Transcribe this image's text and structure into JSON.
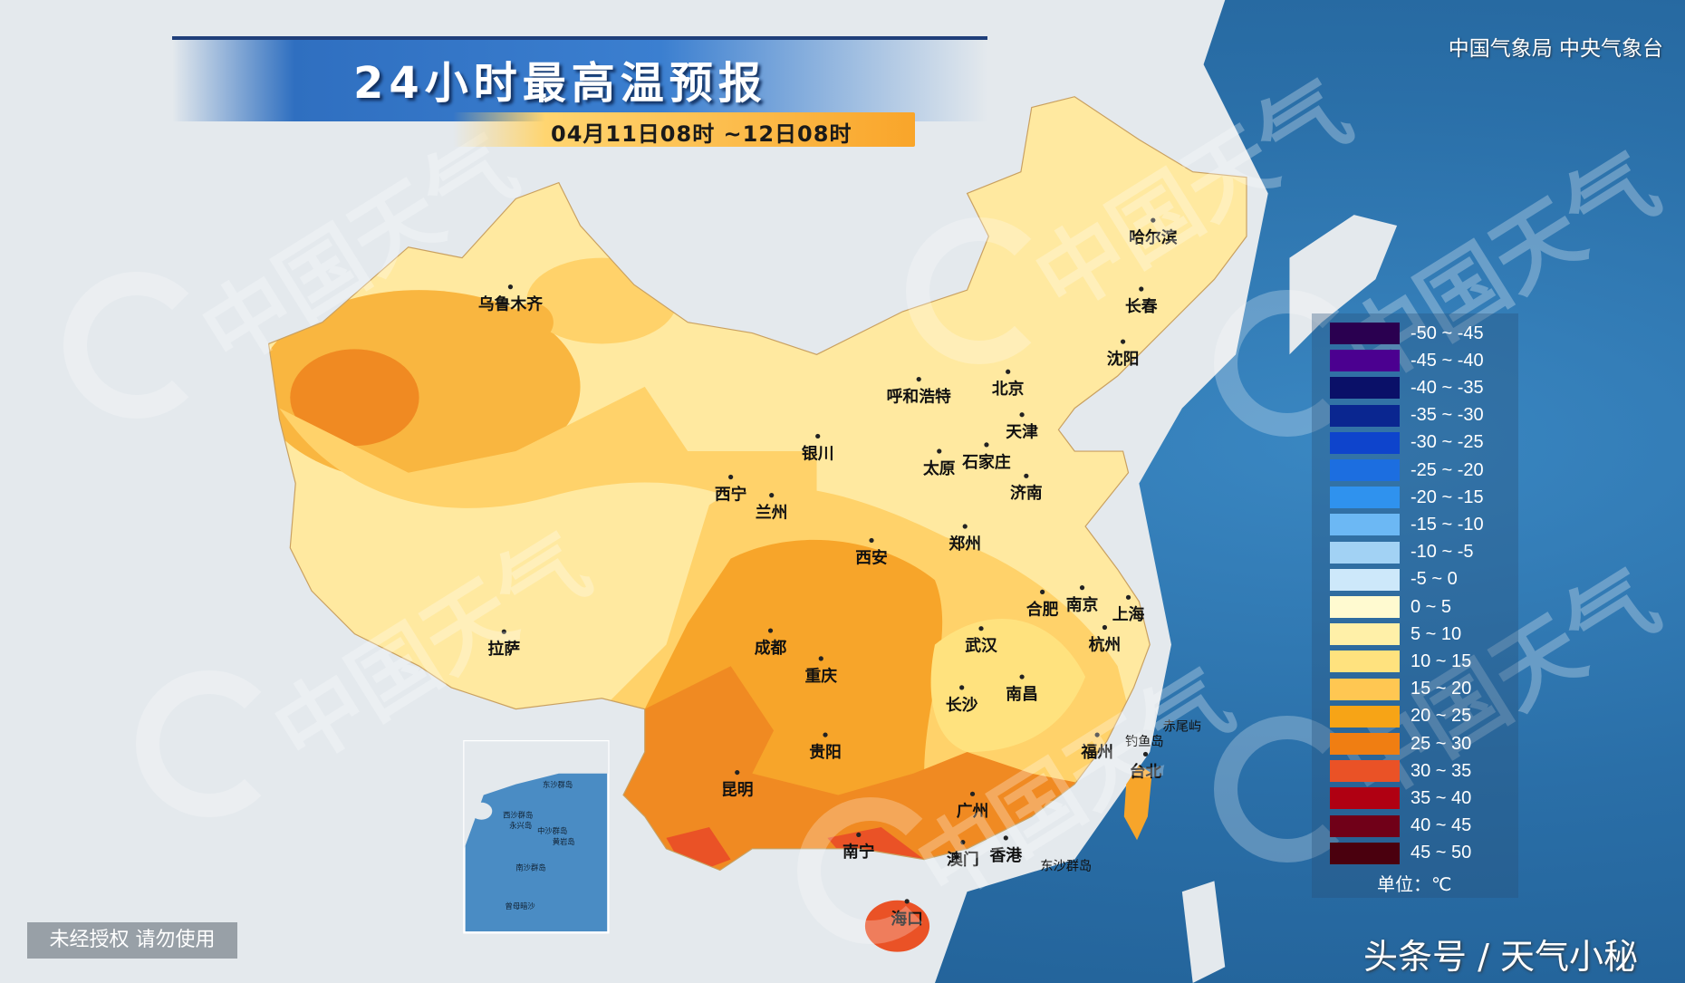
{
  "header": {
    "title": "24小时最高温预报",
    "date_range": "04月11日08时 ~12日08时",
    "organization": "中国气象局 中央气象台"
  },
  "legend": {
    "unit": "单位：℃",
    "items": [
      {
        "label": "-50 ~ -45",
        "color": "#2a0050"
      },
      {
        "label": "-45 ~ -40",
        "color": "#4b0090"
      },
      {
        "label": "-40 ~ -35",
        "color": "#0a1068"
      },
      {
        "label": "-35 ~ -30",
        "color": "#0a2690"
      },
      {
        "label": "-30 ~ -25",
        "color": "#0e44cc"
      },
      {
        "label": "-25 ~ -20",
        "color": "#1c6ee0"
      },
      {
        "label": "-20 ~ -15",
        "color": "#2f92ee"
      },
      {
        "label": "-15 ~ -10",
        "color": "#6cb8f4"
      },
      {
        "label": "-10 ~ -5",
        "color": "#a2d2f4"
      },
      {
        "label": "-5 ~ 0",
        "color": "#cde8fa"
      },
      {
        "label": "0 ~ 5",
        "color": "#fffad0"
      },
      {
        "label": "5 ~ 10",
        "color": "#fff0a8"
      },
      {
        "label": "10 ~ 15",
        "color": "#ffe27e"
      },
      {
        "label": "15 ~ 20",
        "color": "#ffc752"
      },
      {
        "label": "20 ~ 25",
        "color": "#f7a416"
      },
      {
        "label": "25 ~ 30",
        "color": "#f07e12"
      },
      {
        "label": "30 ~ 35",
        "color": "#ea5226"
      },
      {
        "label": "35 ~ 40",
        "color": "#b00012"
      },
      {
        "label": "40 ~ 45",
        "color": "#700018"
      },
      {
        "label": "45 ~ 50",
        "color": "#4a000e"
      }
    ]
  },
  "cities": [
    {
      "name": "乌鲁木齐"
    },
    {
      "name": "哈尔滨"
    },
    {
      "name": "长春"
    },
    {
      "name": "沈阳"
    },
    {
      "name": "呼和浩特"
    },
    {
      "name": "北京"
    },
    {
      "name": "天津"
    },
    {
      "name": "银川"
    },
    {
      "name": "太原"
    },
    {
      "name": "石家庄"
    },
    {
      "name": "济南"
    },
    {
      "name": "西宁"
    },
    {
      "name": "兰州"
    },
    {
      "name": "西安"
    },
    {
      "name": "郑州"
    },
    {
      "name": "合肥"
    },
    {
      "name": "南京"
    },
    {
      "name": "上海"
    },
    {
      "name": "拉萨"
    },
    {
      "name": "成都"
    },
    {
      "name": "重庆"
    },
    {
      "name": "武汉"
    },
    {
      "name": "杭州"
    },
    {
      "name": "长沙"
    },
    {
      "name": "南昌"
    },
    {
      "name": "贵阳"
    },
    {
      "name": "福州"
    },
    {
      "name": "台北"
    },
    {
      "name": "昆明"
    },
    {
      "name": "广州"
    },
    {
      "name": "南宁"
    },
    {
      "name": "澳门"
    },
    {
      "name": "香港"
    },
    {
      "name": "海口"
    }
  ],
  "islands": {
    "diaoyu": "钓鱼岛",
    "chiwei": "赤尾屿",
    "dongsha": "东沙群岛"
  },
  "inset": {
    "dongsha": "东沙群岛",
    "xisha": "西沙群岛",
    "yongxing": "永兴岛",
    "zhongsha": "中沙群岛",
    "huangyan": "黄岩岛",
    "nansha": "南沙群岛",
    "zengmu": "曾母暗沙"
  },
  "watermark": "中国天气",
  "footer": {
    "warning": "未经授权 请勿使用",
    "credit": "头条号 / 天气小秘"
  }
}
